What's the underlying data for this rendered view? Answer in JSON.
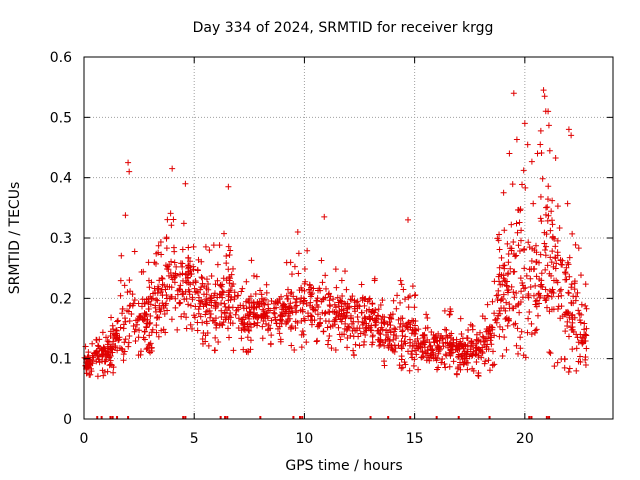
{
  "chart_data": {
    "type": "scatter",
    "title": "Day 334 of 2024, SRMTID for receiver krgg",
    "xlabel": "GPS time / hours",
    "ylabel": "SRMTID / TECUs",
    "xlim": [
      0,
      24
    ],
    "ylim": [
      0,
      0.6
    ],
    "x_ticks": [
      0,
      5,
      10,
      15,
      20
    ],
    "x_tick_labels": [
      "0",
      "5",
      "10",
      "15",
      "20"
    ],
    "y_ticks": [
      0,
      0.1,
      0.2,
      0.3,
      0.4,
      0.5,
      0.6
    ],
    "y_tick_labels": [
      "0",
      "0.1",
      "0.2",
      "0.3",
      "0.4",
      "0.5",
      "0.6"
    ],
    "grid": true,
    "marker": "plus",
    "color": "#e00000",
    "series": [
      {
        "name": "SRMTID",
        "description": "approximate envelope of the dense point cloud, sampled each 0.5 h",
        "x": [
          0.0,
          0.5,
          1.0,
          1.5,
          2.0,
          2.5,
          3.0,
          3.5,
          4.0,
          4.5,
          5.0,
          5.5,
          6.0,
          6.5,
          7.0,
          7.5,
          8.0,
          8.5,
          9.0,
          9.5,
          10.0,
          10.5,
          11.0,
          11.5,
          12.0,
          12.5,
          13.0,
          13.5,
          14.0,
          14.5,
          15.0,
          15.5,
          16.0,
          16.5,
          17.0,
          17.5,
          18.0,
          18.5,
          19.0,
          19.5,
          20.0,
          20.5,
          21.0,
          21.5,
          22.0,
          22.5,
          22.8
        ],
        "low": [
          0.07,
          0.07,
          0.07,
          0.08,
          0.09,
          0.1,
          0.11,
          0.12,
          0.14,
          0.15,
          0.14,
          0.12,
          0.11,
          0.11,
          0.11,
          0.11,
          0.12,
          0.12,
          0.12,
          0.11,
          0.12,
          0.12,
          0.11,
          0.11,
          0.11,
          0.1,
          0.1,
          0.09,
          0.08,
          0.08,
          0.08,
          0.08,
          0.08,
          0.08,
          0.07,
          0.07,
          0.07,
          0.08,
          0.1,
          0.1,
          0.1,
          0.1,
          0.1,
          0.08,
          0.07,
          0.07,
          0.07
        ],
        "high": [
          0.12,
          0.13,
          0.16,
          0.19,
          0.4,
          0.24,
          0.28,
          0.3,
          0.4,
          0.34,
          0.38,
          0.3,
          0.3,
          0.36,
          0.26,
          0.27,
          0.25,
          0.25,
          0.28,
          0.3,
          0.3,
          0.28,
          0.27,
          0.26,
          0.26,
          0.27,
          0.28,
          0.25,
          0.24,
          0.24,
          0.22,
          0.2,
          0.2,
          0.19,
          0.17,
          0.17,
          0.18,
          0.21,
          0.4,
          0.48,
          0.48,
          0.44,
          0.53,
          0.42,
          0.4,
          0.3,
          0.22
        ],
        "mean": [
          0.09,
          0.1,
          0.11,
          0.13,
          0.17,
          0.16,
          0.18,
          0.2,
          0.23,
          0.22,
          0.23,
          0.19,
          0.18,
          0.2,
          0.17,
          0.17,
          0.17,
          0.17,
          0.18,
          0.18,
          0.19,
          0.18,
          0.17,
          0.17,
          0.17,
          0.17,
          0.17,
          0.15,
          0.14,
          0.14,
          0.13,
          0.12,
          0.12,
          0.12,
          0.11,
          0.11,
          0.12,
          0.14,
          0.2,
          0.24,
          0.24,
          0.22,
          0.27,
          0.22,
          0.2,
          0.16,
          0.13
        ]
      }
    ],
    "outliers": [
      {
        "x": 2.0,
        "y": 0.425
      },
      {
        "x": 2.05,
        "y": 0.41
      },
      {
        "x": 4.0,
        "y": 0.415
      },
      {
        "x": 4.6,
        "y": 0.39
      },
      {
        "x": 6.55,
        "y": 0.385
      },
      {
        "x": 9.7,
        "y": 0.31
      },
      {
        "x": 10.9,
        "y": 0.335
      },
      {
        "x": 14.7,
        "y": 0.33
      },
      {
        "x": 19.5,
        "y": 0.54
      },
      {
        "x": 20.0,
        "y": 0.49
      },
      {
        "x": 20.85,
        "y": 0.545
      },
      {
        "x": 20.9,
        "y": 0.535
      },
      {
        "x": 20.95,
        "y": 0.51
      },
      {
        "x": 22.0,
        "y": 0.48
      },
      {
        "x": 22.1,
        "y": 0.47
      },
      {
        "x": 19.3,
        "y": 0.44
      },
      {
        "x": 20.7,
        "y": 0.455
      }
    ],
    "zero_markers_x": [
      0.6,
      0.8,
      1.2,
      1.3,
      1.5,
      2.0,
      4.5,
      4.6,
      6.2,
      6.4,
      6.5,
      8.0,
      9.5,
      9.8,
      9.9,
      13.0,
      13.8,
      14.8,
      16.0,
      17.0,
      18.4,
      20.2,
      20.3,
      21.0,
      21.1
    ]
  }
}
